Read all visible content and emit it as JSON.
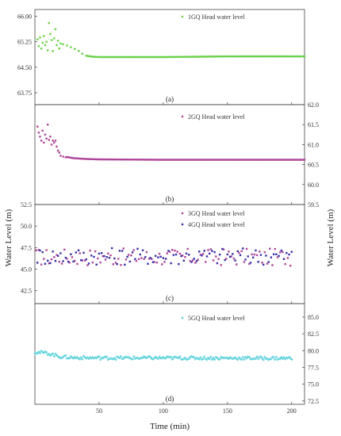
{
  "chart_data": {
    "type": "scatter",
    "xlabel": "Time (min)",
    "ylabel_left": "Water  Level  (m)",
    "ylabel_right": "Water  Level  (m)",
    "x_ticks": [
      "50",
      "100",
      "150",
      "200"
    ],
    "xlim": [
      0,
      210
    ],
    "panels": [
      {
        "label": "(a)",
        "axis_side": "left",
        "ylim": [
          63.4,
          66.2
        ],
        "y_ticks": [
          "66.00",
          "65.25",
          "64.50",
          "63.75"
        ],
        "y_tick_values": [
          66.0,
          65.25,
          64.5,
          63.75
        ],
        "series": [
          {
            "name": "1GQ Head water level",
            "color": "#6ad34a",
            "marker": "square",
            "points": [
              [
                2,
                65.32
              ],
              [
                3,
                65.12
              ],
              [
                4,
                65.38
              ],
              [
                5,
                65.05
              ],
              [
                6,
                65.22
              ],
              [
                7,
                65.42
              ],
              [
                8,
                65.15
              ],
              [
                9,
                65.25
              ],
              [
                10,
                65.0
              ],
              [
                11,
                65.8
              ],
              [
                12,
                65.48
              ],
              [
                13,
                65.3
              ],
              [
                14,
                64.98
              ],
              [
                15,
                65.35
              ],
              [
                16,
                65.62
              ],
              [
                17,
                65.15
              ],
              [
                18,
                65.28
              ],
              [
                19,
                65.05
              ],
              [
                20,
                65.2
              ],
              [
                22,
                65.18
              ],
              [
                25,
                65.14
              ],
              [
                28,
                65.09
              ],
              [
                31,
                65.04
              ],
              [
                34,
                64.98
              ],
              [
                37,
                64.9
              ],
              [
                40,
                64.84
              ]
            ],
            "trend": [
              [
                20,
                65.2
              ],
              [
                25,
                65.14
              ],
              [
                30,
                65.06
              ],
              [
                35,
                64.96
              ],
              [
                40,
                64.84
              ],
              [
                45,
                64.81
              ],
              [
                50,
                64.8
              ],
              [
                100,
                64.8
              ],
              [
                150,
                64.82
              ],
              [
                210,
                64.82
              ]
            ]
          }
        ]
      },
      {
        "label": "(b)",
        "axis_side": "right",
        "ylim": [
          59.5,
          62.0
        ],
        "y_ticks": [
          "62.0",
          "61.5",
          "61.0",
          "60.5",
          "60.0",
          "59.5"
        ],
        "y_tick_values": [
          62.0,
          61.5,
          61.0,
          60.5,
          60.0,
          59.5
        ],
        "series": [
          {
            "name": "2GQ Head water level",
            "color": "#b0479a",
            "marker": "square",
            "points": [
              [
                2,
                61.45
              ],
              [
                3,
                61.3
              ],
              [
                4,
                61.2
              ],
              [
                5,
                61.1
              ],
              [
                6,
                61.35
              ],
              [
                7,
                61.05
              ],
              [
                8,
                61.25
              ],
              [
                9,
                61.15
              ],
              [
                10,
                61.5
              ],
              [
                11,
                61.12
              ],
              [
                12,
                61.2
              ],
              [
                13,
                61.0
              ],
              [
                14,
                61.1
              ],
              [
                15,
                61.05
              ],
              [
                16,
                61.1
              ],
              [
                17,
                60.95
              ],
              [
                18,
                60.85
              ],
              [
                19,
                60.8
              ],
              [
                20,
                60.72
              ],
              [
                22,
                60.7
              ],
              [
                24,
                60.68
              ]
            ],
            "trend": [
              [
                20,
                60.72
              ],
              [
                30,
                60.66
              ],
              [
                40,
                60.64
              ],
              [
                50,
                60.63
              ],
              [
                100,
                60.62
              ],
              [
                150,
                60.62
              ],
              [
                210,
                60.62
              ]
            ]
          }
        ]
      },
      {
        "label": "(c)",
        "axis_side": "left",
        "ylim": [
          41.0,
          52.5
        ],
        "y_ticks": [
          "52.5",
          "50.0",
          "47.5",
          "45.0",
          "42.5"
        ],
        "y_tick_values": [
          52.5,
          50.0,
          47.5,
          45.0,
          42.5
        ],
        "series": [
          {
            "name": "3GQ Head water level",
            "color": "#b0479a",
            "marker": "square",
            "noisy": {
              "x_start": 1,
              "x_end": 200,
              "step": 2,
              "center": 46.4,
              "amplitude": 1.0
            }
          },
          {
            "name": "4GQ Head water level",
            "color": "#3a2fa8",
            "marker": "square",
            "noisy": {
              "x_start": 2,
              "x_end": 200,
              "step": 2,
              "center": 46.5,
              "amplitude": 1.0
            }
          }
        ]
      },
      {
        "label": "(d)",
        "axis_side": "right",
        "ylim": [
          72.0,
          87.0
        ],
        "y_ticks": [
          "85.0",
          "82.5",
          "80.0",
          "77.5",
          "75.0",
          "72.5"
        ],
        "y_tick_values": [
          85.0,
          82.5,
          80.0,
          77.5,
          75.0,
          72.5
        ],
        "series": [
          {
            "name": "5GQ Head water level",
            "color": "#6ad6df",
            "marker": "diamond",
            "trend": [
              [
                0,
                79.8
              ],
              [
                10,
                79.6
              ],
              [
                20,
                79.1
              ],
              [
                30,
                78.95
              ],
              [
                50,
                78.9
              ],
              [
                100,
                78.9
              ],
              [
                150,
                78.88
              ],
              [
                200,
                78.85
              ]
            ],
            "jitter": 0.25
          }
        ]
      }
    ],
    "grid": false,
    "legend_placement": "top-right"
  }
}
